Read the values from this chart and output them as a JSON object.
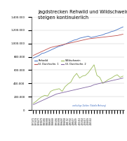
{
  "title": "Jagdstrecken Rehwild und Wildschweine\nsteigen kontinuierlich",
  "title_fontsize": 4.8,
  "series": {
    "Rehwild": {
      "color": "#4472C4",
      "trend_color": "#C0504D",
      "values": [
        780000,
        800000,
        820000,
        850000,
        860000,
        880000,
        900000,
        920000,
        940000,
        960000,
        970000,
        990000,
        1010000,
        1030000,
        1050000,
        1060000,
        1080000,
        1090000,
        1100000,
        1110000,
        1090000,
        1100000,
        1110000,
        1120000,
        1130000,
        1150000,
        1160000,
        1180000,
        1190000,
        1210000,
        1230000,
        1250000
      ],
      "trend_values": [
        820000,
        840000,
        860000,
        880000,
        900000,
        920000,
        940000,
        950000,
        960000,
        970000,
        980000,
        990000,
        1000000,
        1010000,
        1020000,
        1030000,
        1040000,
        1050000,
        1060000,
        1070000,
        1075000,
        1080000,
        1085000,
        1090000,
        1095000,
        1100000,
        1105000,
        1110000,
        1115000,
        1120000,
        1130000,
        1140000
      ]
    },
    "Wildschwein": {
      "color": "#9BBB59",
      "trend_color": "#8064A2",
      "values": [
        100000,
        130000,
        170000,
        200000,
        220000,
        210000,
        280000,
        300000,
        310000,
        320000,
        280000,
        350000,
        390000,
        420000,
        500000,
        550000,
        480000,
        510000,
        520000,
        560000,
        620000,
        680000,
        520000,
        490000,
        400000,
        430000,
        460000,
        480000,
        510000,
        530000,
        490000,
        510000
      ],
      "trend_values": [
        80000,
        100000,
        120000,
        140000,
        160000,
        180000,
        200000,
        220000,
        240000,
        250000,
        260000,
        270000,
        280000,
        290000,
        300000,
        310000,
        320000,
        330000,
        340000,
        350000,
        360000,
        380000,
        390000,
        400000,
        410000,
        420000,
        430000,
        440000,
        450000,
        460000,
        470000,
        480000
      ]
    }
  },
  "xlabels": [
    "1971/72",
    "1973/74",
    "1976/77",
    "1978/79",
    "1981/82",
    "1983/84",
    "1986/87",
    "1988/89",
    "1991/92",
    "1993/94",
    "1996/97",
    "1998/99",
    "2001/02",
    "2003/04",
    "2006/07",
    "2008/09",
    "2011/12",
    "2013/14",
    "2016/17",
    "2018/19",
    "2021/22",
    "",
    "",
    "",
    "",
    "",
    "",
    "",
    "",
    "",
    "",
    ""
  ],
  "note": "vorläufige Zahlen (Tabelle/Anhang)",
  "ylim": [
    0,
    1400000
  ],
  "yticks": [
    0,
    200000,
    400000,
    600000,
    800000,
    1000000,
    1200000,
    1400000
  ],
  "ytick_labels": [
    "0",
    "200.000",
    "400.000",
    "600.000",
    "800.000",
    "1.000.000",
    "1.200.000",
    "1.400.000"
  ],
  "bg_color": "#FFFFFF",
  "grid_color": "#C0C0C0",
  "legend": {
    "Rehwild": "#4472C4",
    "Gl. Durchschn. 1": "#C0504D",
    "Wildschwein": "#9BBB59",
    "Gl. Durchschn. 2": "#8064A2"
  }
}
